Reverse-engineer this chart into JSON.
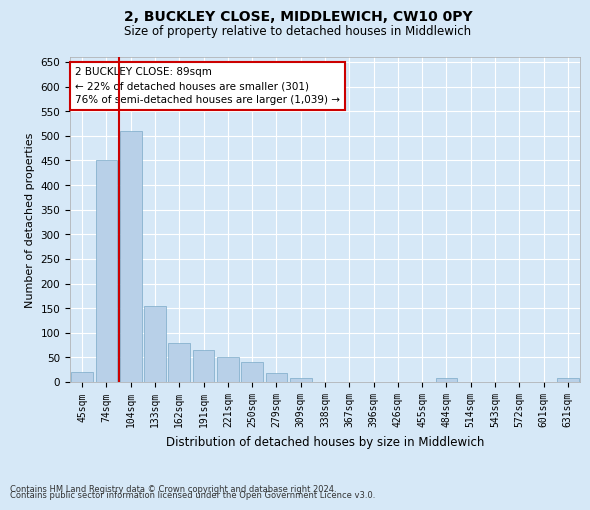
{
  "title": "2, BUCKLEY CLOSE, MIDDLEWICH, CW10 0PY",
  "subtitle": "Size of property relative to detached houses in Middlewich",
  "xlabel": "Distribution of detached houses by size in Middlewich",
  "ylabel": "Number of detached properties",
  "categories": [
    "45sqm",
    "74sqm",
    "104sqm",
    "133sqm",
    "162sqm",
    "191sqm",
    "221sqm",
    "250sqm",
    "279sqm",
    "309sqm",
    "338sqm",
    "367sqm",
    "396sqm",
    "426sqm",
    "455sqm",
    "484sqm",
    "514sqm",
    "543sqm",
    "572sqm",
    "601sqm",
    "631sqm"
  ],
  "values": [
    20,
    450,
    510,
    155,
    80,
    65,
    50,
    40,
    18,
    8,
    0,
    0,
    0,
    0,
    0,
    8,
    0,
    0,
    0,
    0,
    8
  ],
  "bar_color": "#b8d0e8",
  "bar_edge_color": "#7aaac8",
  "bg_color": "#d6e8f7",
  "grid_color": "#ffffff",
  "red_line_x": 1.5,
  "annotation_line1": "2 BUCKLEY CLOSE: 89sqm",
  "annotation_line2": "← 22% of detached houses are smaller (301)",
  "annotation_line3": "76% of semi-detached houses are larger (1,039) →",
  "annotation_box_edgecolor": "#cc0000",
  "ylim": [
    0,
    660
  ],
  "yticks": [
    0,
    50,
    100,
    150,
    200,
    250,
    300,
    350,
    400,
    450,
    500,
    550,
    600,
    650
  ],
  "footer_line1": "Contains HM Land Registry data © Crown copyright and database right 2024.",
  "footer_line2": "Contains public sector information licensed under the Open Government Licence v3.0."
}
